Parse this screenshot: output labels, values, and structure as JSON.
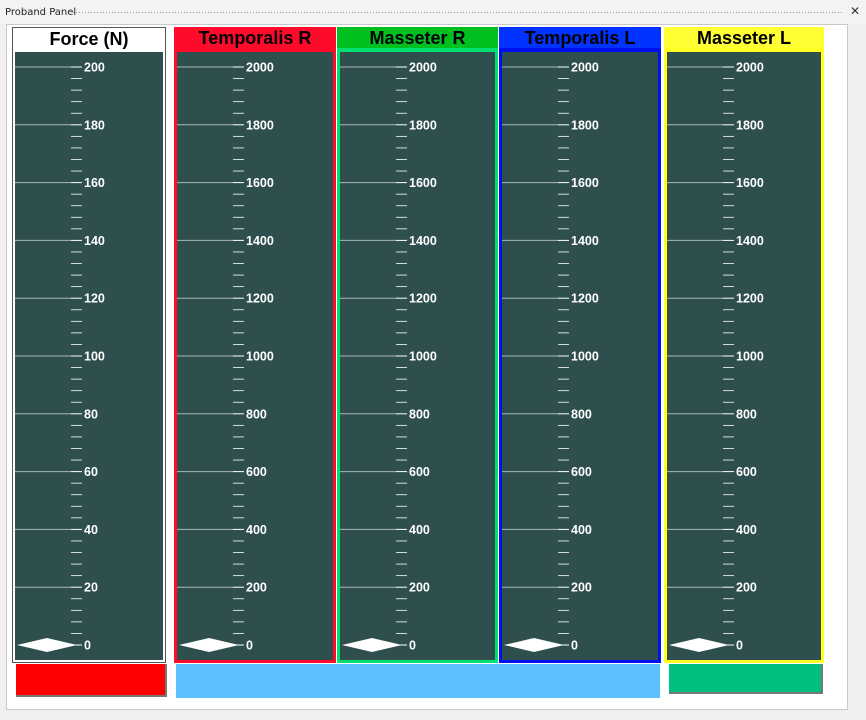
{
  "window": {
    "title": "Proband Panel",
    "close_glyph": "✕"
  },
  "columns": [
    {
      "header": "Force (N)",
      "header_bg": "#ffffff",
      "frame": "#ffffff",
      "max": 200,
      "ticks": [
        "0",
        "20",
        "40",
        "60",
        "80",
        "100",
        "120",
        "140",
        "160",
        "180",
        "200"
      ],
      "level": 0
    },
    {
      "header": "Temporalis R",
      "header_bg": "#ff0a2a",
      "frame": "#ff0a2a",
      "max": 2000,
      "ticks": [
        "0",
        "200",
        "400",
        "600",
        "800",
        "1000",
        "1200",
        "1400",
        "1600",
        "1800",
        "2000"
      ],
      "level": 0
    },
    {
      "header": "Masseter R",
      "header_bg": "#00c020",
      "frame": "#00e070",
      "max": 2000,
      "ticks": [
        "0",
        "200",
        "400",
        "600",
        "800",
        "1000",
        "1200",
        "1400",
        "1600",
        "1800",
        "2000"
      ],
      "level": 0
    },
    {
      "header": "Temporalis L",
      "header_bg": "#0033ff",
      "frame": "#0010ee",
      "max": 2000,
      "ticks": [
        "0",
        "200",
        "400",
        "600",
        "800",
        "1000",
        "1200",
        "1400",
        "1600",
        "1800",
        "2000"
      ],
      "level": 0
    },
    {
      "header": "Masseter L",
      "header_bg": "#ffff33",
      "frame": "#ffff22",
      "max": 2000,
      "ticks": [
        "0",
        "200",
        "400",
        "600",
        "800",
        "1000",
        "1200",
        "1400",
        "1600",
        "1800",
        "2000"
      ],
      "level": 0
    }
  ],
  "bottom": {
    "left_indicator_color": "#ff0000",
    "middle_bar_color": "#5bc0ff",
    "right_indicator_color": "#00c080"
  },
  "colors": {
    "gauge_bg": "#2f4f4f",
    "gauge_ink": "#ffffff"
  }
}
